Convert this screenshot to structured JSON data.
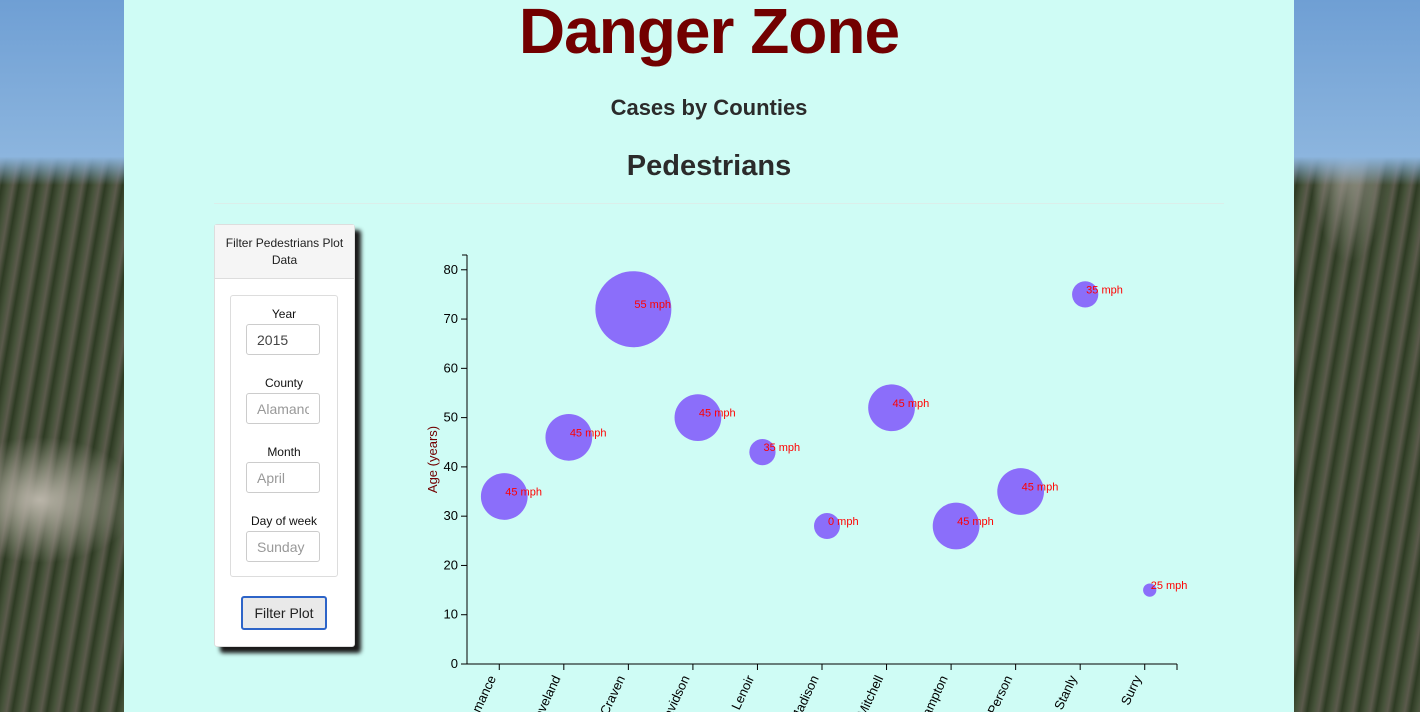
{
  "page": {
    "title": "Danger Zone",
    "subtitle": "Cases by Counties",
    "section_title": "Pedestrians"
  },
  "filter": {
    "heading": "Filter Pedestrians Plot Data",
    "fields": [
      {
        "label": "Year",
        "value": "2015",
        "placeholder": ""
      },
      {
        "label": "County",
        "value": "",
        "placeholder": "Alamance"
      },
      {
        "label": "Month",
        "value": "",
        "placeholder": "April"
      },
      {
        "label": "Day of week",
        "value": "",
        "placeholder": "Sunday"
      }
    ],
    "button_label": "Filter Plot"
  },
  "colors": {
    "title": "#720000",
    "panel_bg": "#cffcf5",
    "bubble": "#8766fa",
    "bubble_label": "#ff0000",
    "ylabel": "#720000"
  },
  "chart_data": {
    "type": "scatter",
    "encoding": "bubble",
    "xlabel": "",
    "ylabel": "Age (years)",
    "ylim": [
      0,
      83
    ],
    "yticks": [
      0,
      10,
      20,
      30,
      40,
      50,
      60,
      70,
      80
    ],
    "xticks": [
      "Alamance",
      "Cleveland",
      "Craven",
      "Davidson",
      "Lenoir",
      "Madison",
      "Mitchell",
      "Northampton",
      "Person",
      "Stanly",
      "Surry"
    ],
    "points": [
      {
        "x": "Alamance",
        "y": 34,
        "label": "45 mph"
      },
      {
        "x": "Cleveland",
        "y": 46,
        "label": "45 mph"
      },
      {
        "x": "Craven",
        "y": 72,
        "label": "55 mph"
      },
      {
        "x": "Davidson",
        "y": 50,
        "label": "45 mph"
      },
      {
        "x": "Lenoir",
        "y": 43,
        "label": "35 mph"
      },
      {
        "x": "Madison",
        "y": 28,
        "label": "0 mph"
      },
      {
        "x": "Mitchell",
        "y": 52,
        "label": "45 mph"
      },
      {
        "x": "Northampton",
        "y": 28,
        "label": "45 mph"
      },
      {
        "x": "Person",
        "y": 35,
        "label": "45 mph"
      },
      {
        "x": "Stanly",
        "y": 75,
        "label": "35 mph"
      },
      {
        "x": "Surry",
        "y": 15,
        "label": "25 mph"
      }
    ]
  }
}
